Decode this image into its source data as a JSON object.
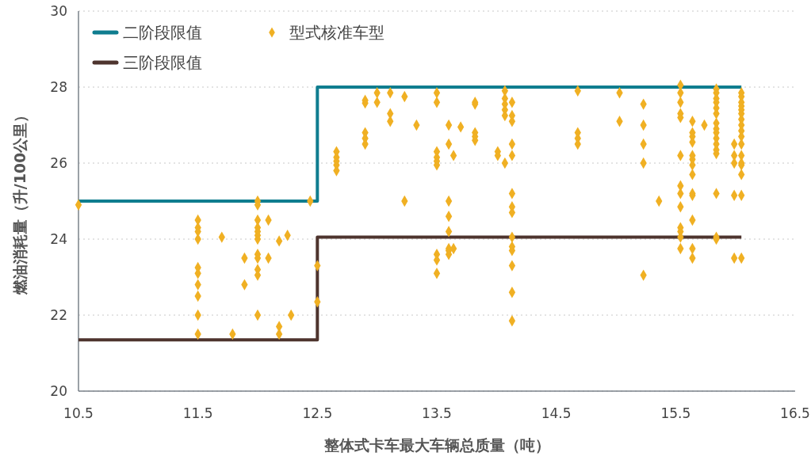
{
  "chart_data": {
    "type": "scatter",
    "xlabel": "整体式卡车最大车辆总质量（吨）",
    "ylabel": "燃油消耗量（升/100公里）",
    "xlim": [
      10.5,
      16.5
    ],
    "xticks": [
      10.5,
      11.5,
      12.5,
      13.5,
      14.5,
      15.5,
      16.5
    ],
    "ylim": [
      20,
      30
    ],
    "yticks": [
      20,
      22,
      24,
      26,
      28,
      30
    ],
    "grid": "y",
    "legend": "top left",
    "series": [
      {
        "name": "二阶段限值",
        "type": "step",
        "color": "#0f7d8f",
        "marker": "none",
        "x": [
          10.5,
          12.5,
          16.05
        ],
        "values": [
          25,
          28,
          28
        ]
      },
      {
        "name": "三阶段限值",
        "type": "step",
        "color": "#4e342e",
        "marker": "none",
        "x": [
          10.5,
          12.5,
          16.05
        ],
        "values": [
          21.35,
          24.05,
          24.05
        ]
      },
      {
        "name": "型式核准车型",
        "color": "#f0b023",
        "marker": "diamond",
        "x": [
          10.5,
          11.5,
          11.5,
          11.5,
          11.5,
          11.5,
          11.5,
          11.5,
          11.5,
          11.5,
          11.5,
          11.7,
          11.79,
          11.89,
          11.89,
          12.0,
          12.0,
          12.0,
          12.0,
          12.0,
          12.0,
          12.0,
          12.0,
          12.0,
          12.0,
          12.0,
          12.0,
          12.09,
          12.09,
          12.18,
          12.18,
          12.18,
          12.25,
          12.28,
          12.44,
          12.5,
          12.5,
          12.66,
          12.66,
          12.66,
          12.66,
          12.66,
          12.9,
          12.9,
          12.9,
          12.9,
          12.9,
          13.0,
          13.0,
          13.11,
          13.11,
          13.11,
          13.23,
          13.23,
          13.33,
          13.5,
          13.5,
          13.5,
          13.5,
          13.5,
          13.5,
          13.5,
          13.5,
          13.5,
          13.6,
          13.6,
          13.6,
          13.6,
          13.6,
          13.6,
          13.6,
          13.6,
          13.64,
          13.64,
          13.7,
          13.82,
          13.82,
          13.82,
          13.82,
          13.82,
          14.01,
          14.01,
          14.07,
          14.07,
          14.07,
          14.07,
          14.07,
          14.07,
          14.13,
          14.13,
          14.13,
          14.13,
          14.13,
          14.13,
          14.13,
          14.13,
          14.13,
          14.13,
          14.13,
          14.13,
          14.13,
          14.13,
          14.68,
          14.68,
          14.68,
          14.68,
          15.03,
          15.03,
          15.23,
          15.23,
          15.23,
          15.23,
          15.23,
          15.36,
          15.54,
          15.54,
          15.54,
          15.54,
          15.54,
          15.54,
          15.54,
          15.54,
          15.54,
          15.54,
          15.54,
          15.54,
          15.54,
          15.64,
          15.64,
          15.64,
          15.64,
          15.64,
          15.64,
          15.64,
          15.64,
          15.64,
          15.64,
          15.64,
          15.64,
          15.64,
          15.74,
          15.84,
          15.84,
          15.84,
          15.84,
          15.84,
          15.84,
          15.84,
          15.84,
          15.84,
          15.84,
          15.84,
          15.84,
          15.84,
          15.84,
          15.84,
          15.84,
          15.99,
          15.99,
          15.99,
          15.99,
          15.99,
          16.05,
          16.05,
          16.05,
          16.05,
          16.05,
          16.05,
          16.05,
          16.05,
          16.05,
          16.05,
          16.05,
          16.05,
          16.05,
          16.05,
          16.05,
          16.05,
          16.05
        ],
        "values": [
          24.9,
          24.5,
          24.3,
          24.2,
          24.0,
          23.25,
          23.1,
          22.8,
          22.5,
          22.0,
          21.5,
          24.05,
          21.5,
          23.5,
          22.8,
          25.0,
          24.9,
          24.5,
          24.3,
          24.2,
          24.1,
          24.0,
          23.6,
          23.5,
          23.2,
          23.05,
          22.0,
          24.5,
          23.5,
          21.7,
          21.5,
          23.95,
          24.1,
          22.0,
          25.0,
          23.3,
          22.35,
          26.3,
          26.15,
          26.05,
          25.95,
          25.8,
          27.65,
          27.58,
          26.8,
          26.65,
          26.5,
          27.85,
          27.6,
          27.85,
          27.3,
          27.1,
          27.75,
          25.0,
          27.0,
          27.85,
          27.6,
          26.3,
          26.15,
          26.05,
          25.95,
          23.6,
          23.45,
          23.1,
          27.0,
          26.5,
          25.0,
          24.6,
          24.2,
          23.75,
          23.7,
          23.6,
          26.2,
          23.75,
          26.95,
          27.6,
          27.55,
          26.8,
          26.7,
          26.6,
          26.3,
          26.2,
          27.9,
          27.7,
          27.55,
          27.4,
          27.25,
          26.0,
          27.6,
          27.25,
          27.1,
          26.5,
          26.2,
          25.2,
          24.85,
          24.7,
          24.05,
          23.8,
          23.7,
          23.3,
          22.6,
          21.85,
          27.9,
          26.8,
          26.65,
          26.5,
          27.1,
          27.85,
          27.55,
          27.0,
          26.5,
          26.0,
          23.05,
          25.0,
          28.05,
          27.85,
          27.6,
          27.3,
          27.2,
          26.2,
          25.4,
          25.2,
          24.85,
          24.3,
          24.2,
          24.05,
          23.75,
          27.1,
          26.8,
          26.7,
          26.55,
          26.2,
          26.1,
          25.95,
          25.7,
          25.2,
          25.15,
          24.5,
          23.75,
          23.5,
          27.0,
          27.95,
          27.85,
          27.7,
          27.6,
          27.45,
          27.3,
          27.05,
          26.9,
          26.8,
          26.65,
          26.5,
          26.35,
          26.25,
          25.2,
          24.05,
          24.0,
          26.5,
          26.2,
          26.0,
          25.15,
          23.5,
          27.85,
          27.75,
          27.6,
          27.5,
          27.4,
          27.3,
          27.15,
          27.0,
          26.85,
          26.7,
          26.5,
          26.2,
          26.0,
          25.95,
          25.7,
          25.15,
          23.5
        ]
      }
    ]
  }
}
